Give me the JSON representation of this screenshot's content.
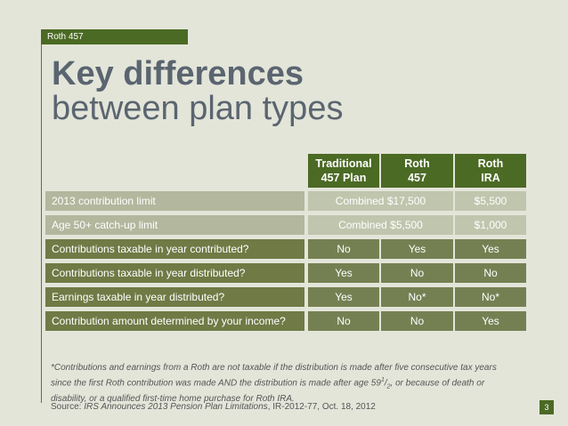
{
  "section_tag": "Roth 457",
  "title": "Key differences",
  "subtitle": "between plan types",
  "table": {
    "headers": [
      {
        "line1": "Traditional",
        "line2": "457 Plan"
      },
      {
        "line1": "Roth",
        "line2": "457"
      },
      {
        "line1": "Roth",
        "line2": "IRA"
      }
    ],
    "rows": [
      {
        "label": "2013 contribution limit",
        "col12": "Combined $17,500",
        "col3": "$5,500"
      },
      {
        "label": "Age 50+ catch-up limit",
        "col12": "Combined $5,500",
        "col3": "$1,000"
      },
      {
        "label": "Contributions taxable in year contributed?",
        "cells": [
          "No",
          "Yes",
          "Yes"
        ]
      },
      {
        "label": "Contributions taxable in year distributed?",
        "cells": [
          "Yes",
          "No",
          "No"
        ]
      },
      {
        "label": "Earnings taxable in year distributed?",
        "cells": [
          "Yes",
          "No*",
          "No*"
        ]
      },
      {
        "label": "Contribution amount determined by your income?",
        "cells": [
          "No",
          "No",
          "Yes"
        ]
      }
    ]
  },
  "footnote": {
    "text_before": "*Contributions and earnings from a Roth are not taxable if the distribution is made after five consecutive tax years since the first Roth contribution was made AND the distribution is made after age 59",
    "sup": "1",
    "frac_sep": "/",
    "sub": "2",
    "text_after": ", or because of death or disability, or a qualified first-time home purchase for Roth IRA."
  },
  "source": {
    "prefix": "Source: ",
    "title": "IRS Announces 2013 Pension Plan Limitations",
    "suffix": ", IR-2012-77, Oct. 18, 2012"
  },
  "page_number": "3"
}
